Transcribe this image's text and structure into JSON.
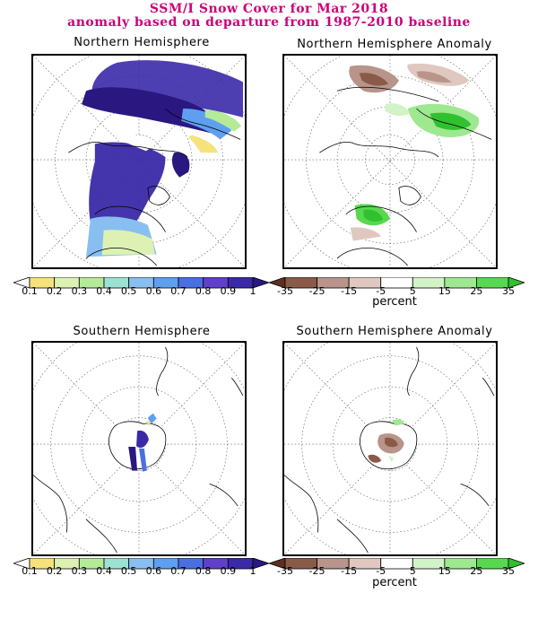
{
  "header": {
    "line1": "SSM/I Snow Cover for Mar 2018",
    "line2": "anomaly based on departure from 1987-2010 baseline",
    "color": "#cc0077"
  },
  "panels": {
    "nh_cover": {
      "title": "Northern Hemisphere"
    },
    "nh_anomaly": {
      "title": "Northern Hemisphere Anomaly"
    },
    "sh_cover": {
      "title": "Southern Hemisphere"
    },
    "sh_anomaly": {
      "title": "Southern Hemisphere Anomaly"
    }
  },
  "cover_scale": {
    "labels": [
      "0.1",
      "0.2",
      "0.3",
      "0.4",
      "0.5",
      "0.6",
      "0.7",
      "0.8",
      "0.9",
      "1"
    ],
    "colors": [
      "#ffffff",
      "#f5e27a",
      "#ddf2b2",
      "#b4ea98",
      "#9ce2d2",
      "#88bff0",
      "#5f9ff0",
      "#4a6fe0",
      "#6040c8",
      "#3a2aa8",
      "#2a1880"
    ]
  },
  "anomaly_scale": {
    "labels": [
      "-35",
      "-25",
      "-15",
      "-5",
      "5",
      "15",
      "25",
      "35"
    ],
    "colors": [
      "#5c3020",
      "#8a5a48",
      "#b8948a",
      "#e0c8c0",
      "#ffffff",
      "#d2f2c8",
      "#9ee890",
      "#58d850",
      "#30c030"
    ],
    "units": "percent"
  },
  "icons": {
    "graticule": "dotted-polar-grid",
    "coastline": "coastline-outline"
  }
}
